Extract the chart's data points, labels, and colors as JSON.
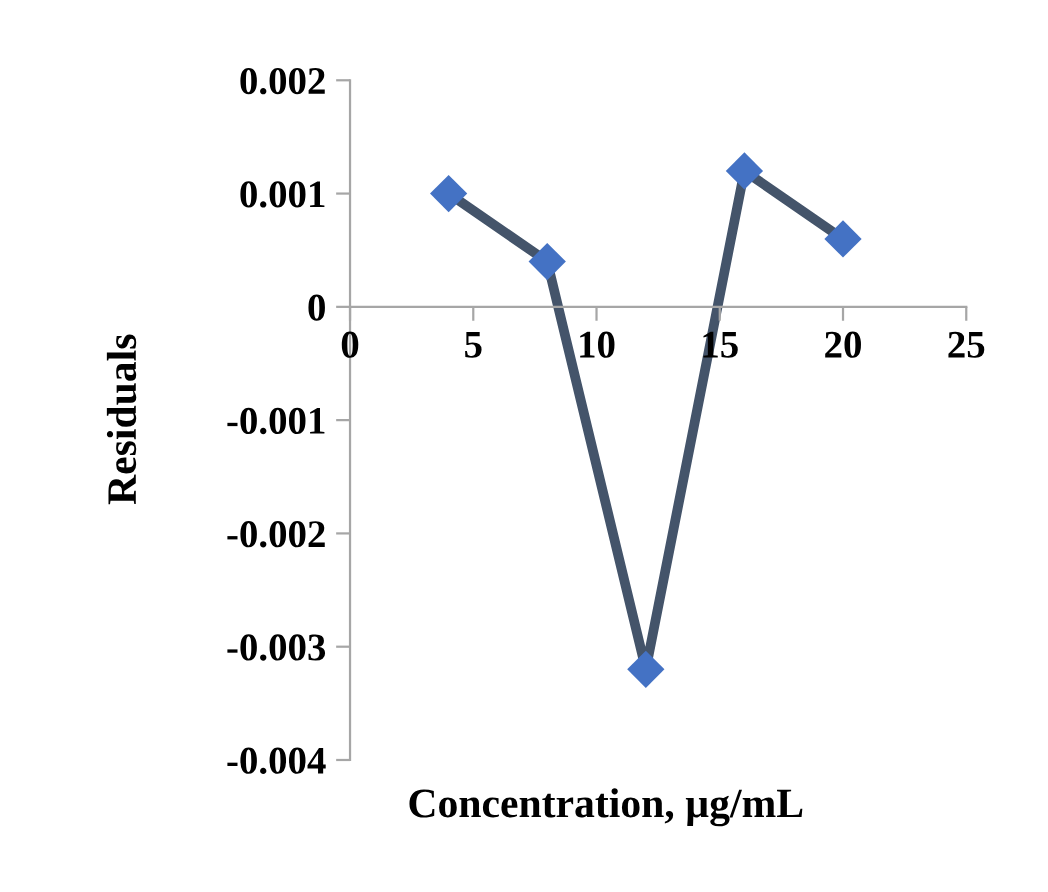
{
  "chart_data": {
    "type": "line",
    "xlabel": "Concentration, µg/mL",
    "ylabel": "Residuals",
    "x": [
      4,
      8,
      12,
      16,
      20
    ],
    "series": [
      {
        "color": "#44546a",
        "colors": [
          "#4472c4",
          "#4472c4",
          "#4472c4",
          "#4472c4",
          "#4472c4"
        ],
        "values": [
          0.001,
          0.0004,
          -0.0032,
          0.0012,
          0.0006
        ]
      }
    ],
    "xlim": [
      0,
      25
    ],
    "xticks": [
      0,
      5,
      10,
      15,
      20,
      25
    ],
    "ylim": [
      -0.004,
      0.002
    ],
    "yticks": [
      {
        "value": -0.004,
        "label": "-0.004"
      },
      {
        "value": -0.003,
        "label": "-0.003"
      },
      {
        "value": -0.002,
        "label": "-0.002"
      },
      {
        "value": -0.001,
        "label": "-0.001"
      },
      0,
      0.001,
      0.002
    ],
    "marker": "diamond",
    "line_style": "solid",
    "grid": false
  }
}
